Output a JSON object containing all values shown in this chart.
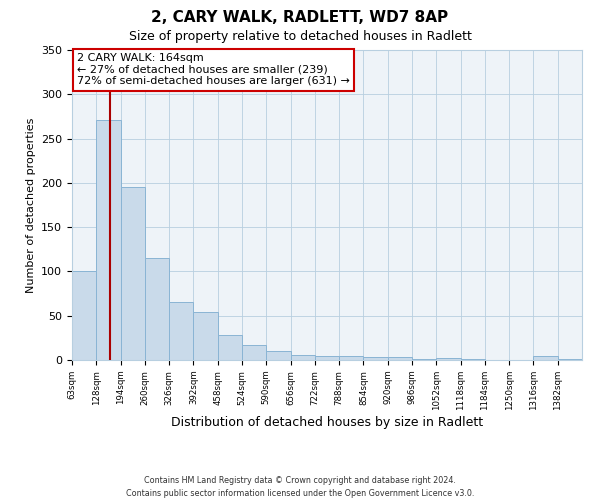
{
  "title": "2, CARY WALK, RADLETT, WD7 8AP",
  "subtitle": "Size of property relative to detached houses in Radlett",
  "xlabel": "Distribution of detached houses by size in Radlett",
  "ylabel": "Number of detached properties",
  "bin_labels": [
    "63sqm",
    "128sqm",
    "194sqm",
    "260sqm",
    "326sqm",
    "392sqm",
    "458sqm",
    "524sqm",
    "590sqm",
    "656sqm",
    "722sqm",
    "788sqm",
    "854sqm",
    "920sqm",
    "986sqm",
    "1052sqm",
    "1118sqm",
    "1184sqm",
    "1250sqm",
    "1316sqm",
    "1382sqm"
  ],
  "bar_values": [
    100,
    271,
    195,
    115,
    65,
    54,
    28,
    17,
    10,
    6,
    5,
    4,
    3,
    3,
    1,
    2,
    1,
    0,
    0,
    4,
    1
  ],
  "bar_color": "#c9daea",
  "bar_edge_color": "#8ab4d4",
  "bar_edge_width": 0.7,
  "red_line_color": "#aa0000",
  "ylim": [
    0,
    350
  ],
  "yticks": [
    0,
    50,
    100,
    150,
    200,
    250,
    300,
    350
  ],
  "annotation_line1": "2 CARY WALK: 164sqm",
  "annotation_line2": "← 27% of detached houses are smaller (239)",
  "annotation_line3": "72% of semi-detached houses are larger (631) →",
  "annotation_box_color": "#ffffff",
  "annotation_box_edge": "#cc0000",
  "footer_text": "Contains HM Land Registry data © Crown copyright and database right 2024.\nContains public sector information licensed under the Open Government Licence v3.0.",
  "background_color": "#ffffff",
  "plot_background_color": "#eef3f8",
  "grid_color": "#b8cfe0"
}
